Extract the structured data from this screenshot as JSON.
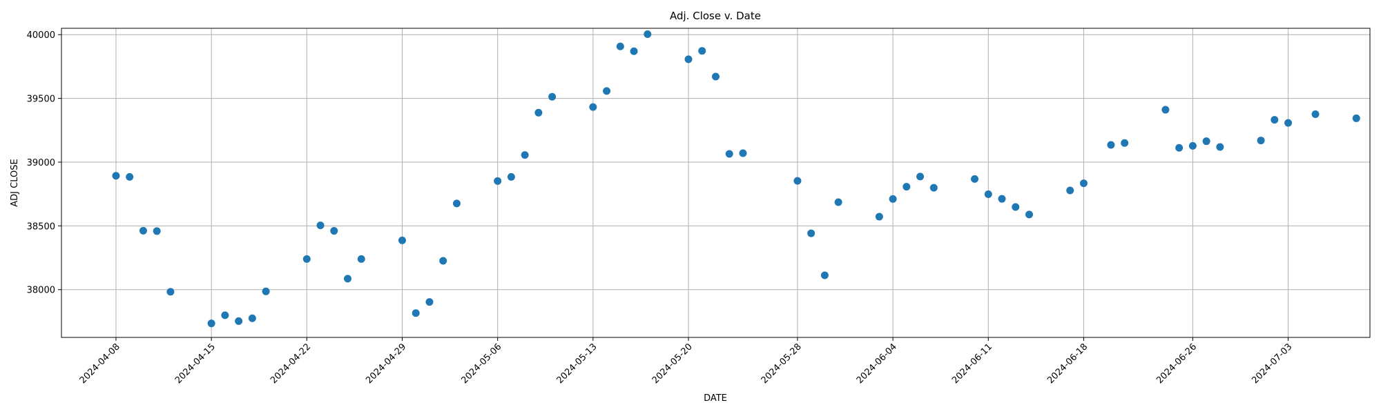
{
  "chart_data": {
    "type": "scatter",
    "title": "Adj. Close v. Date",
    "xlabel": "DATE",
    "ylabel": "ADJ CLOSE",
    "grid": true,
    "marker_color": "#1f77b4",
    "xlim": [
      "2024-04-04",
      "2024-07-09"
    ],
    "ylim": [
      37625,
      40050
    ],
    "x_ticks": [
      "2024-04-08",
      "2024-04-15",
      "2024-04-22",
      "2024-04-29",
      "2024-05-06",
      "2024-05-13",
      "2024-05-20",
      "2024-05-28",
      "2024-06-04",
      "2024-06-11",
      "2024-06-18",
      "2024-06-26",
      "2024-07-03"
    ],
    "y_ticks": [
      38000,
      38500,
      39000,
      39500,
      40000
    ],
    "series": [
      {
        "name": "Adj. Close",
        "x": [
          "2024-04-08",
          "2024-04-09",
          "2024-04-10",
          "2024-04-11",
          "2024-04-12",
          "2024-04-15",
          "2024-04-16",
          "2024-04-17",
          "2024-04-18",
          "2024-04-19",
          "2024-04-22",
          "2024-04-23",
          "2024-04-24",
          "2024-04-25",
          "2024-04-26",
          "2024-04-29",
          "2024-04-30",
          "2024-05-01",
          "2024-05-02",
          "2024-05-03",
          "2024-05-06",
          "2024-05-07",
          "2024-05-08",
          "2024-05-09",
          "2024-05-10",
          "2024-05-13",
          "2024-05-14",
          "2024-05-15",
          "2024-05-16",
          "2024-05-17",
          "2024-05-20",
          "2024-05-21",
          "2024-05-22",
          "2024-05-23",
          "2024-05-24",
          "2024-05-28",
          "2024-05-29",
          "2024-05-30",
          "2024-05-31",
          "2024-06-03",
          "2024-06-04",
          "2024-06-05",
          "2024-06-06",
          "2024-06-07",
          "2024-06-10",
          "2024-06-11",
          "2024-06-12",
          "2024-06-13",
          "2024-06-14",
          "2024-06-17",
          "2024-06-18",
          "2024-06-20",
          "2024-06-21",
          "2024-06-24",
          "2024-06-25",
          "2024-06-26",
          "2024-06-27",
          "2024-06-28",
          "2024-07-01",
          "2024-07-02",
          "2024-07-03",
          "2024-07-05",
          "2024-07-08"
        ],
        "y": [
          38893,
          38884,
          38462,
          38459,
          37983,
          37735,
          37799,
          37753,
          37775,
          37986,
          38240,
          38504,
          38461,
          38086,
          38240,
          38386,
          37816,
          37903,
          38226,
          38676,
          38852,
          38884,
          39056,
          39388,
          39513,
          39432,
          39558,
          39908,
          39870,
          40004,
          39807,
          39873,
          39671,
          39065,
          39070,
          38853,
          38442,
          38112,
          38686,
          38572,
          38711,
          38807,
          38887,
          38799,
          38868,
          38748,
          38712,
          38648,
          38589,
          38778,
          38834,
          39135,
          39150,
          39411,
          39112,
          39128,
          39164,
          39119,
          39170,
          39332,
          39308,
          39376,
          39344
        ]
      }
    ]
  }
}
